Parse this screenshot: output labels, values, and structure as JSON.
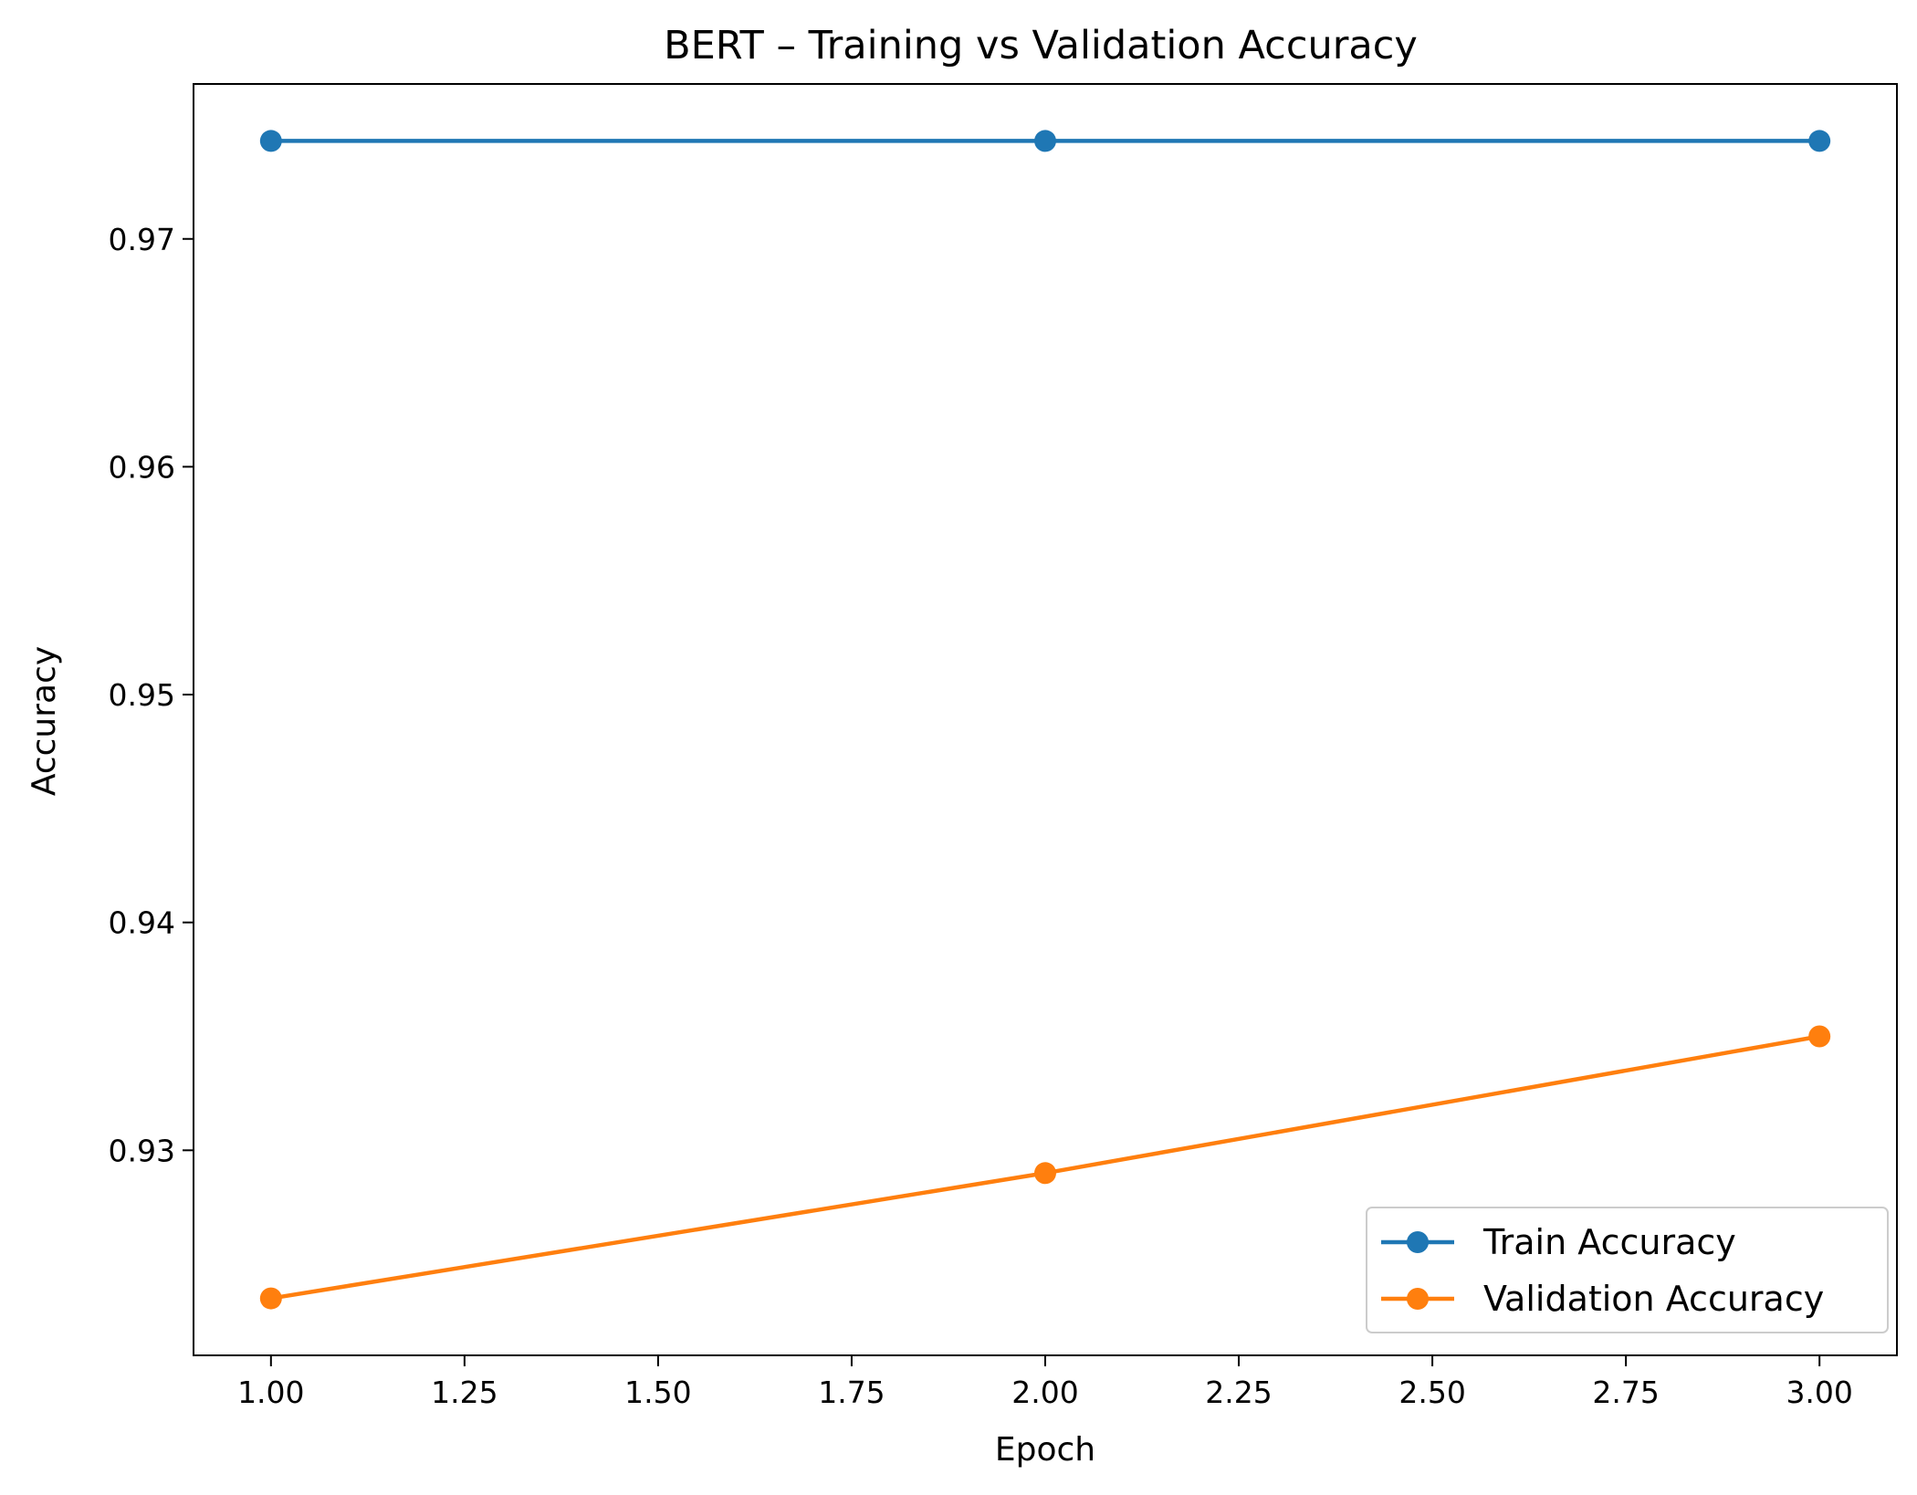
{
  "chart_data": {
    "type": "line",
    "title": "BERT – Training vs Validation Accuracy",
    "xlabel": "Epoch",
    "ylabel": "Accuracy",
    "xlim": [
      0.9,
      3.1
    ],
    "ylim": [
      0.921,
      0.9768
    ],
    "xticks": [
      1.0,
      1.25,
      1.5,
      1.75,
      2.0,
      2.25,
      2.5,
      2.75,
      3.0
    ],
    "xtick_labels": [
      "1.00",
      "1.25",
      "1.50",
      "1.75",
      "2.00",
      "2.25",
      "2.50",
      "2.75",
      "3.00"
    ],
    "yticks": [
      0.93,
      0.94,
      0.95,
      0.96,
      0.97
    ],
    "ytick_labels": [
      "0.93",
      "0.94",
      "0.95",
      "0.96",
      "0.97"
    ],
    "grid": false,
    "legend_position": "bottom-right",
    "x": [
      1,
      2,
      3
    ],
    "series": [
      {
        "name": "Train Accuracy",
        "values": [
          0.9743,
          0.9743,
          0.9743
        ],
        "color": "#1f77b4",
        "marker": "circle"
      },
      {
        "name": "Validation Accuracy",
        "values": [
          0.9235,
          0.929,
          0.935
        ],
        "color": "#ff7f0e",
        "marker": "circle"
      }
    ]
  }
}
